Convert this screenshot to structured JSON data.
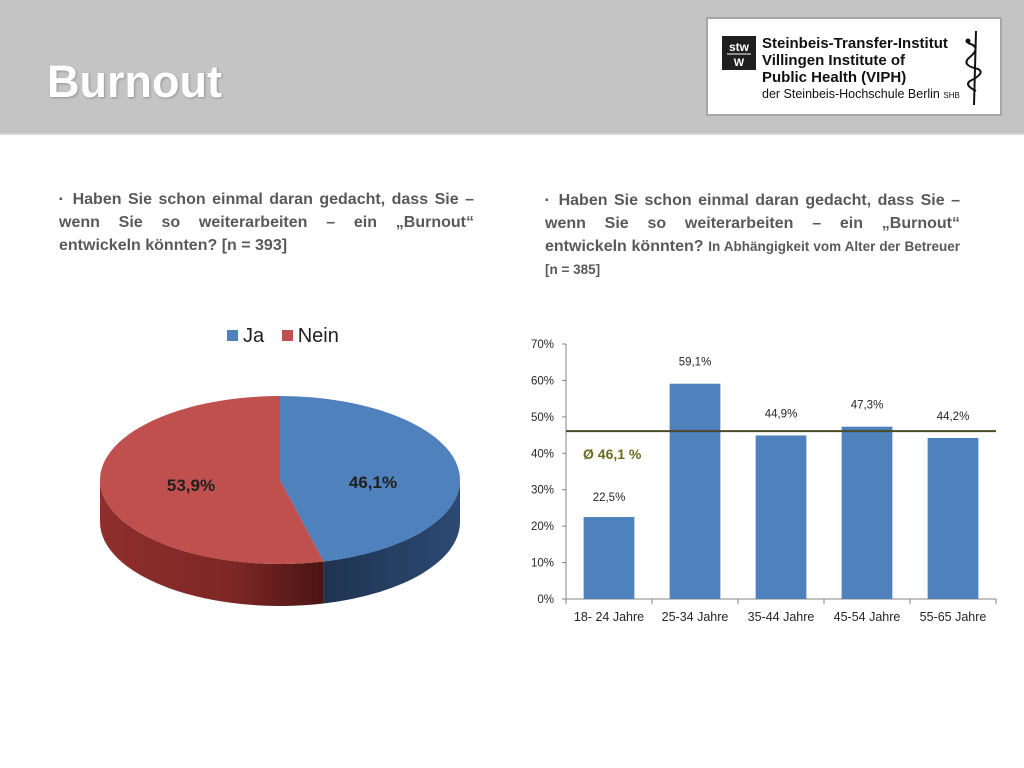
{
  "slide": {
    "title": "Burnout"
  },
  "logo": {
    "mark": "stw",
    "line1": "Steinbeis-Transfer-Institut",
    "line2": "Villingen Institute of",
    "line3": "Public Health (VIPH)",
    "line4": "der Steinbeis-Hochschule Berlin",
    "line4_small": "SHB"
  },
  "left_text": {
    "bullet": "▪",
    "text": "Haben Sie schon einmal daran gedacht, dass Sie – wenn Sie so weiterarbeiten – ein „Burnout“ entwickeln könnten? [n = 393]"
  },
  "right_text": {
    "bullet": "▪",
    "text": "Haben Sie schon einmal daran gedacht, dass Sie – wenn Sie so weiterarbeiten – ein „Burnout“ entwickeln könnten?",
    "suffix": "In Abhängigkeit vom Alter der Betreuer [n = 385]"
  },
  "colors": {
    "ja": "#4f81bd",
    "nein": "#c0504d",
    "avg_line": "#4a4a2a",
    "avg_text": "#6b6b21"
  },
  "chart_data": [
    {
      "type": "pie",
      "categories": [
        "Ja",
        "Nein"
      ],
      "values": [
        46.1,
        53.9
      ],
      "labels": [
        "46,1%",
        "53,9%"
      ],
      "legend": "top"
    },
    {
      "type": "bar",
      "categories": [
        "18- 24 Jahre",
        "25-34 Jahre",
        "35-44 Jahre",
        "45-54 Jahre",
        "55-65 Jahre"
      ],
      "values": [
        22.5,
        59.1,
        44.9,
        47.3,
        44.2
      ],
      "labels": [
        "22,5%",
        "59,1%",
        "44,9%",
        "47,3%",
        "44,2%"
      ],
      "ylim": [
        0,
        70
      ],
      "yticks": [
        "0%",
        "10%",
        "20%",
        "30%",
        "40%",
        "50%",
        "60%",
        "70%"
      ],
      "average": {
        "value": 46.1,
        "label": "Ø 46,1 %"
      },
      "grid": false
    }
  ]
}
